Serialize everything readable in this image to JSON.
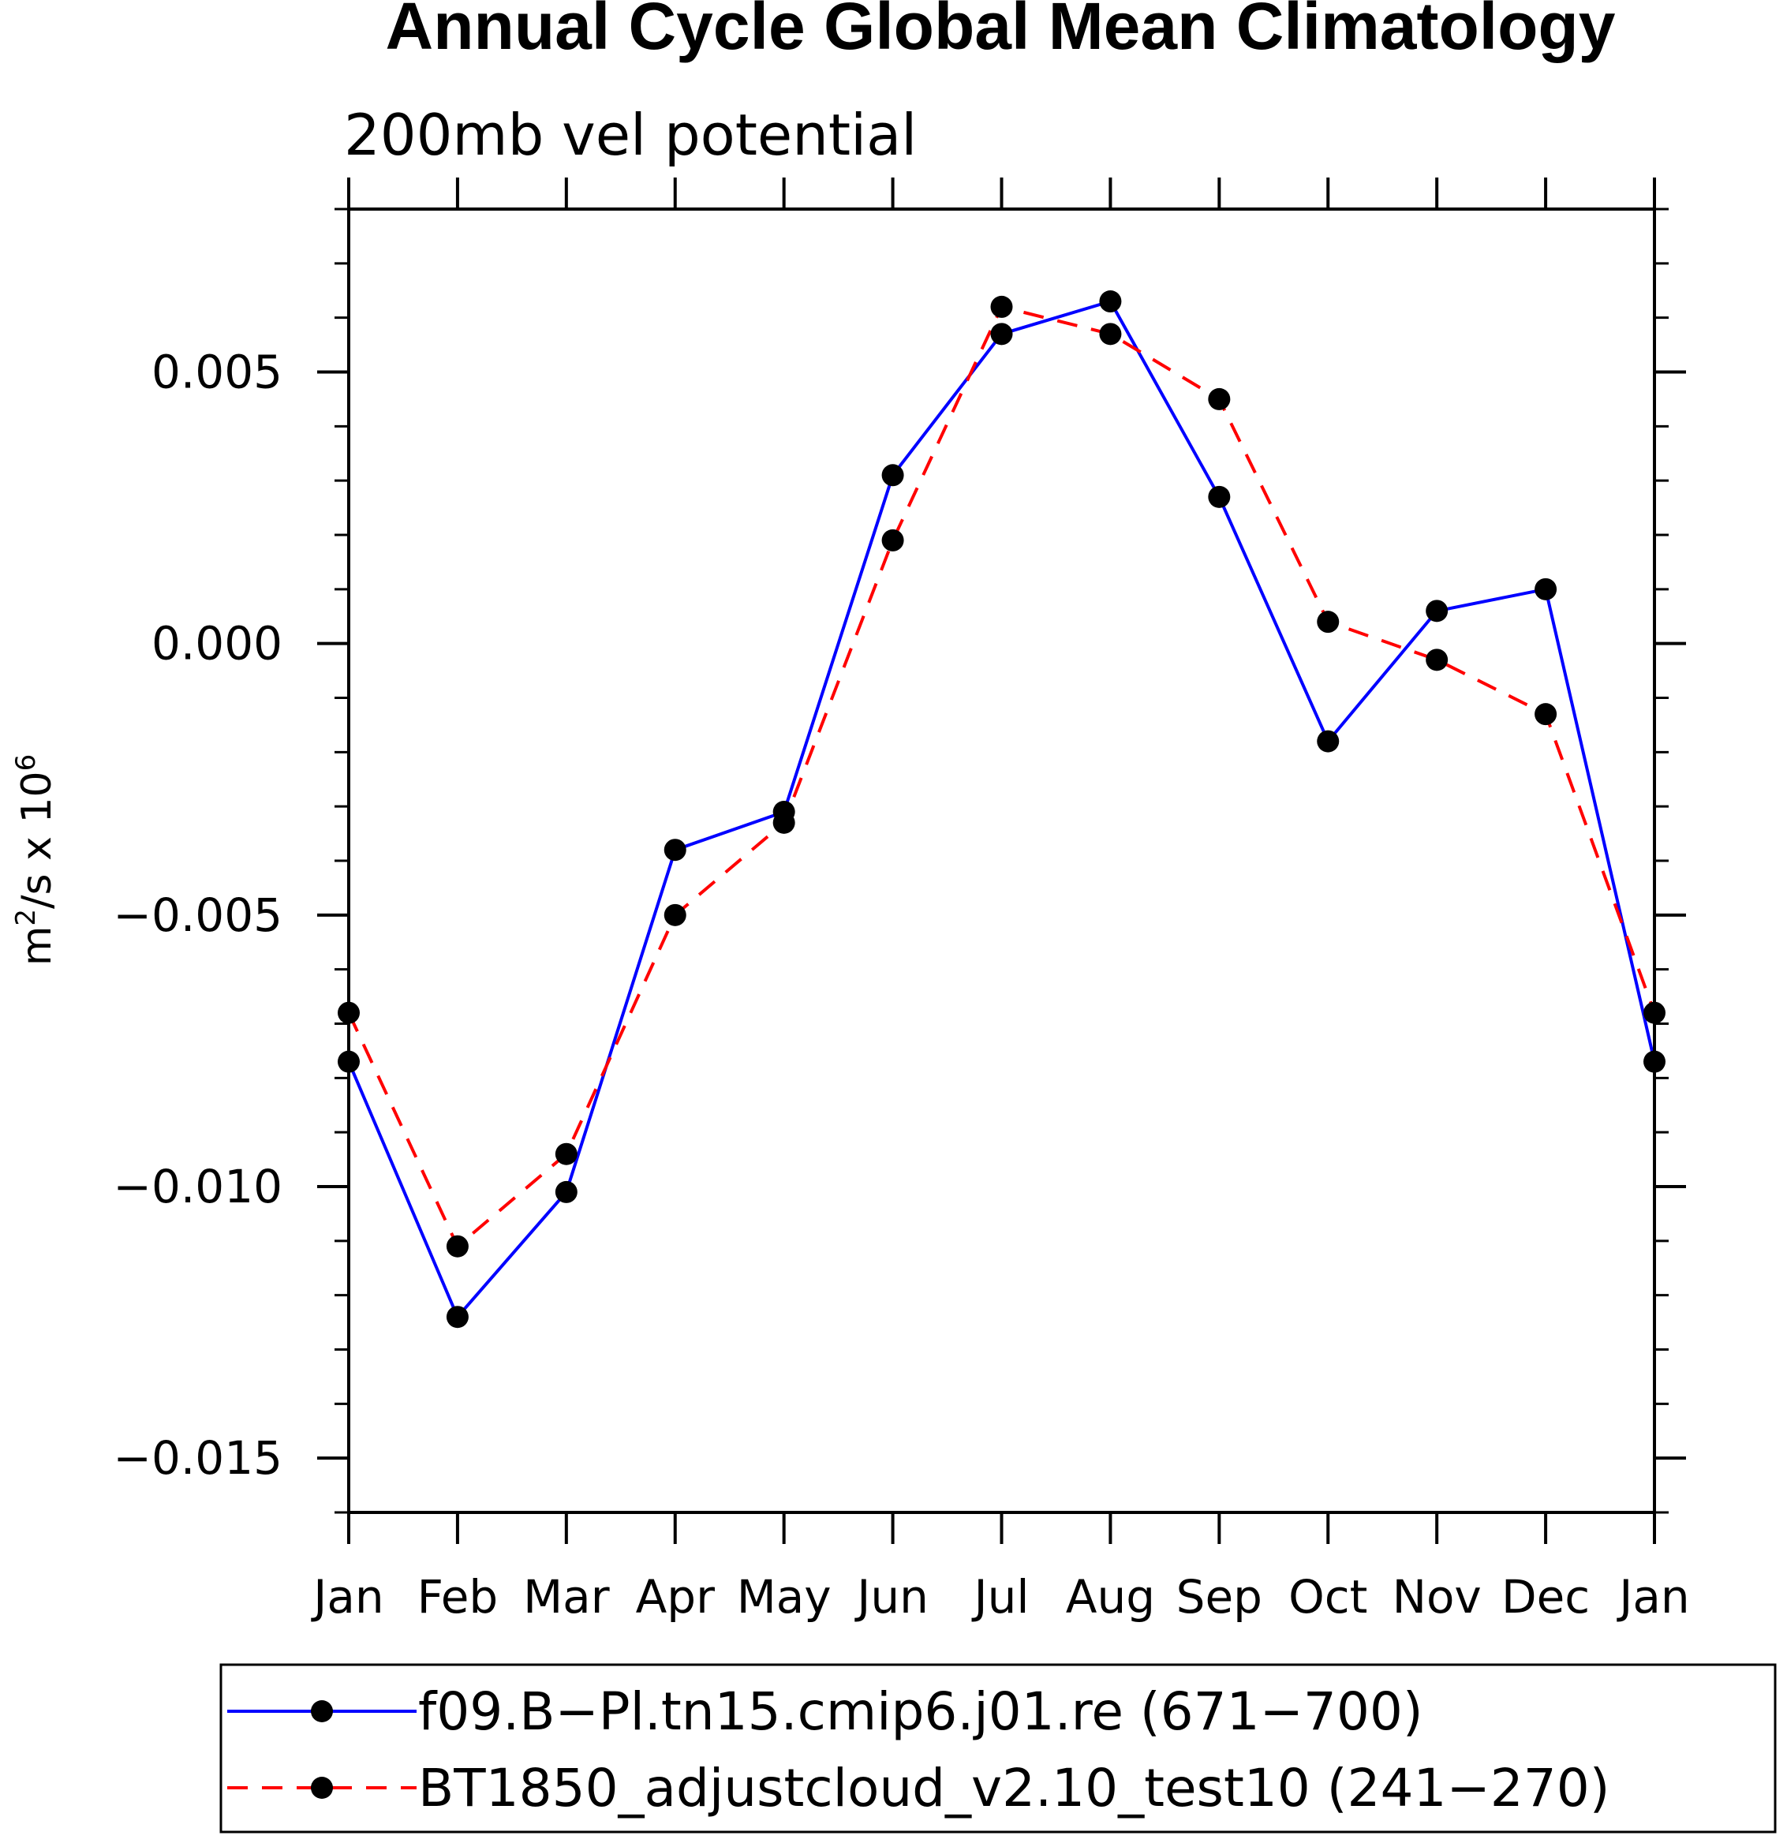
{
  "chart_data": {
    "type": "line",
    "title": "Annual Cycle Global Mean Climatology",
    "subtitle": "200mb vel potential",
    "xlabel": "",
    "ylabel_base": "m",
    "ylabel_sup1": "2",
    "ylabel_mid": "/s x 10",
    "ylabel_sup2": "6",
    "categories": [
      "Jan",
      "Feb",
      "Mar",
      "Apr",
      "May",
      "Jun",
      "Jul",
      "Aug",
      "Sep",
      "Oct",
      "Nov",
      "Dec",
      "Jan"
    ],
    "ylim": [
      -0.016,
      0.008
    ],
    "yticks": [
      -0.015,
      -0.01,
      -0.005,
      0.0,
      0.005
    ],
    "ytick_labels": [
      "−0.015",
      "−0.010",
      "−0.005",
      "0.000",
      "0.005"
    ],
    "legend_position": "bottom",
    "series": [
      {
        "name": "f09.B-Pl.tn15.cmip6.j01.re (671-700)",
        "legend_label": "f09.B−Pl.tn15.cmip6.j01.re (671−700)",
        "color": "#0000ff",
        "style": "solid",
        "values": [
          -0.0077,
          -0.0124,
          -0.0101,
          -0.0038,
          -0.0031,
          0.0031,
          0.0057,
          0.0063,
          0.0027,
          -0.0018,
          0.0006,
          0.001,
          -0.0077
        ]
      },
      {
        "name": "BT1850_adjustcloud_v2.10_test10 (241-270)",
        "legend_label": "BT1850_adjustcloud_v2.10_test10 (241−270)",
        "color": "#ff0000",
        "style": "dashed",
        "values": [
          -0.0068,
          -0.0111,
          -0.0094,
          -0.005,
          -0.0033,
          0.0019,
          0.0062,
          0.0057,
          0.0045,
          0.0004,
          -0.0003,
          -0.0013,
          -0.0068
        ]
      }
    ]
  }
}
